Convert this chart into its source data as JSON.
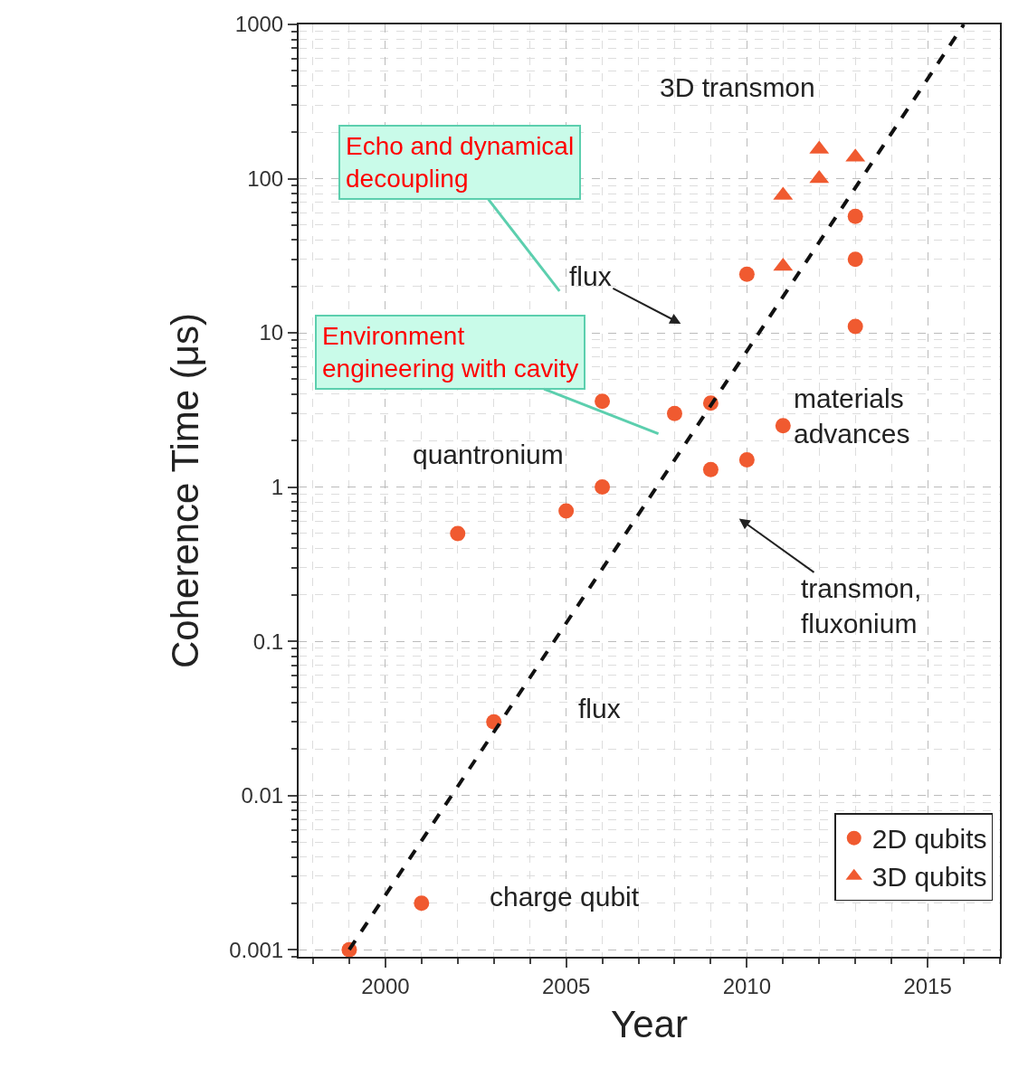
{
  "chart_data": {
    "type": "scatter",
    "xlabel": "Year",
    "ylabel": "Coherence Time (μs)",
    "xlim": [
      1997.6,
      2017
    ],
    "xticks": [
      2000,
      2005,
      2010,
      2015
    ],
    "ylim": [
      0.0009,
      1000
    ],
    "yticks": [
      0.001,
      0.01,
      0.1,
      1,
      10,
      100,
      1000
    ],
    "log": "y",
    "grid": true,
    "legend": "bottom right",
    "series": [
      {
        "name": "2D qubits",
        "color": "#f05a30",
        "marker": "circle",
        "x": [
          1999,
          2001,
          2002,
          2003,
          2005,
          2006,
          2006,
          2008,
          2009,
          2009,
          2010,
          2010,
          2011,
          2013,
          2013,
          2013
        ],
        "values": [
          0.001,
          0.002,
          0.5,
          0.03,
          0.7,
          1,
          3.6,
          3,
          3.5,
          1.3,
          1.5,
          24,
          2.5,
          57,
          30,
          11
        ]
      },
      {
        "name": "3D qubits",
        "color": "#f05a30",
        "marker": "triangle",
        "x": [
          2011,
          2011,
          2012,
          2012,
          2013
        ],
        "values": [
          78,
          27,
          155,
          100,
          138
        ]
      },
      {
        "type": "line",
        "color": "#111111",
        "line_style": "dashed",
        "marker": "none",
        "x": [
          1999,
          2016
        ],
        "values": [
          0.001,
          1000
        ]
      }
    ],
    "annotations": [
      "Echo and dynamical\ndecoupling",
      "Environment\nengineering with cavity",
      "3D transmon",
      "flux",
      "quantronium",
      "flux",
      "charge qubit",
      "materials\nadvances",
      "transmon,\nfluxonium"
    ]
  }
}
